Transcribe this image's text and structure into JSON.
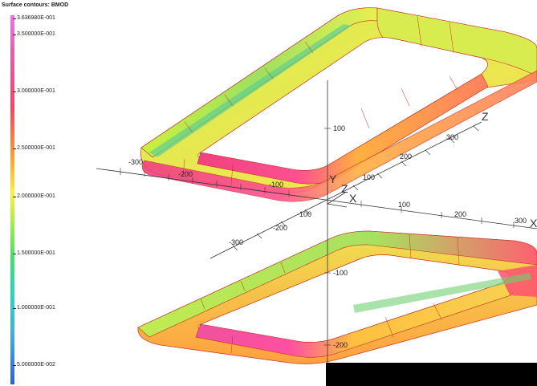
{
  "legend": {
    "title": "Surface contours: BMOD",
    "labels": [
      "3.636980E-001",
      "3.500000E-001",
      "3.000000E-001",
      "2.500000E-001",
      "2.000000E-001",
      "1.500000E-001",
      "1.000000E-001",
      "5.000000E-002"
    ]
  },
  "axes": {
    "x_name": "X",
    "y_name": "Y",
    "z_name": "Z",
    "x_ticks": [
      "-300",
      "-200",
      "-100",
      "100",
      "200",
      "300"
    ],
    "z_ticks": [
      "-300",
      "-200",
      "-100",
      "100",
      "200",
      "300"
    ],
    "y_ticks": [
      "100",
      "-100",
      "-200"
    ],
    "origin_x": "X",
    "origin_y": "Y",
    "origin_z": "Z"
  },
  "colors": {
    "high": "#ff3c8c",
    "mid": "#ffe040",
    "low": "#40e070",
    "edge": "#d03020"
  }
}
